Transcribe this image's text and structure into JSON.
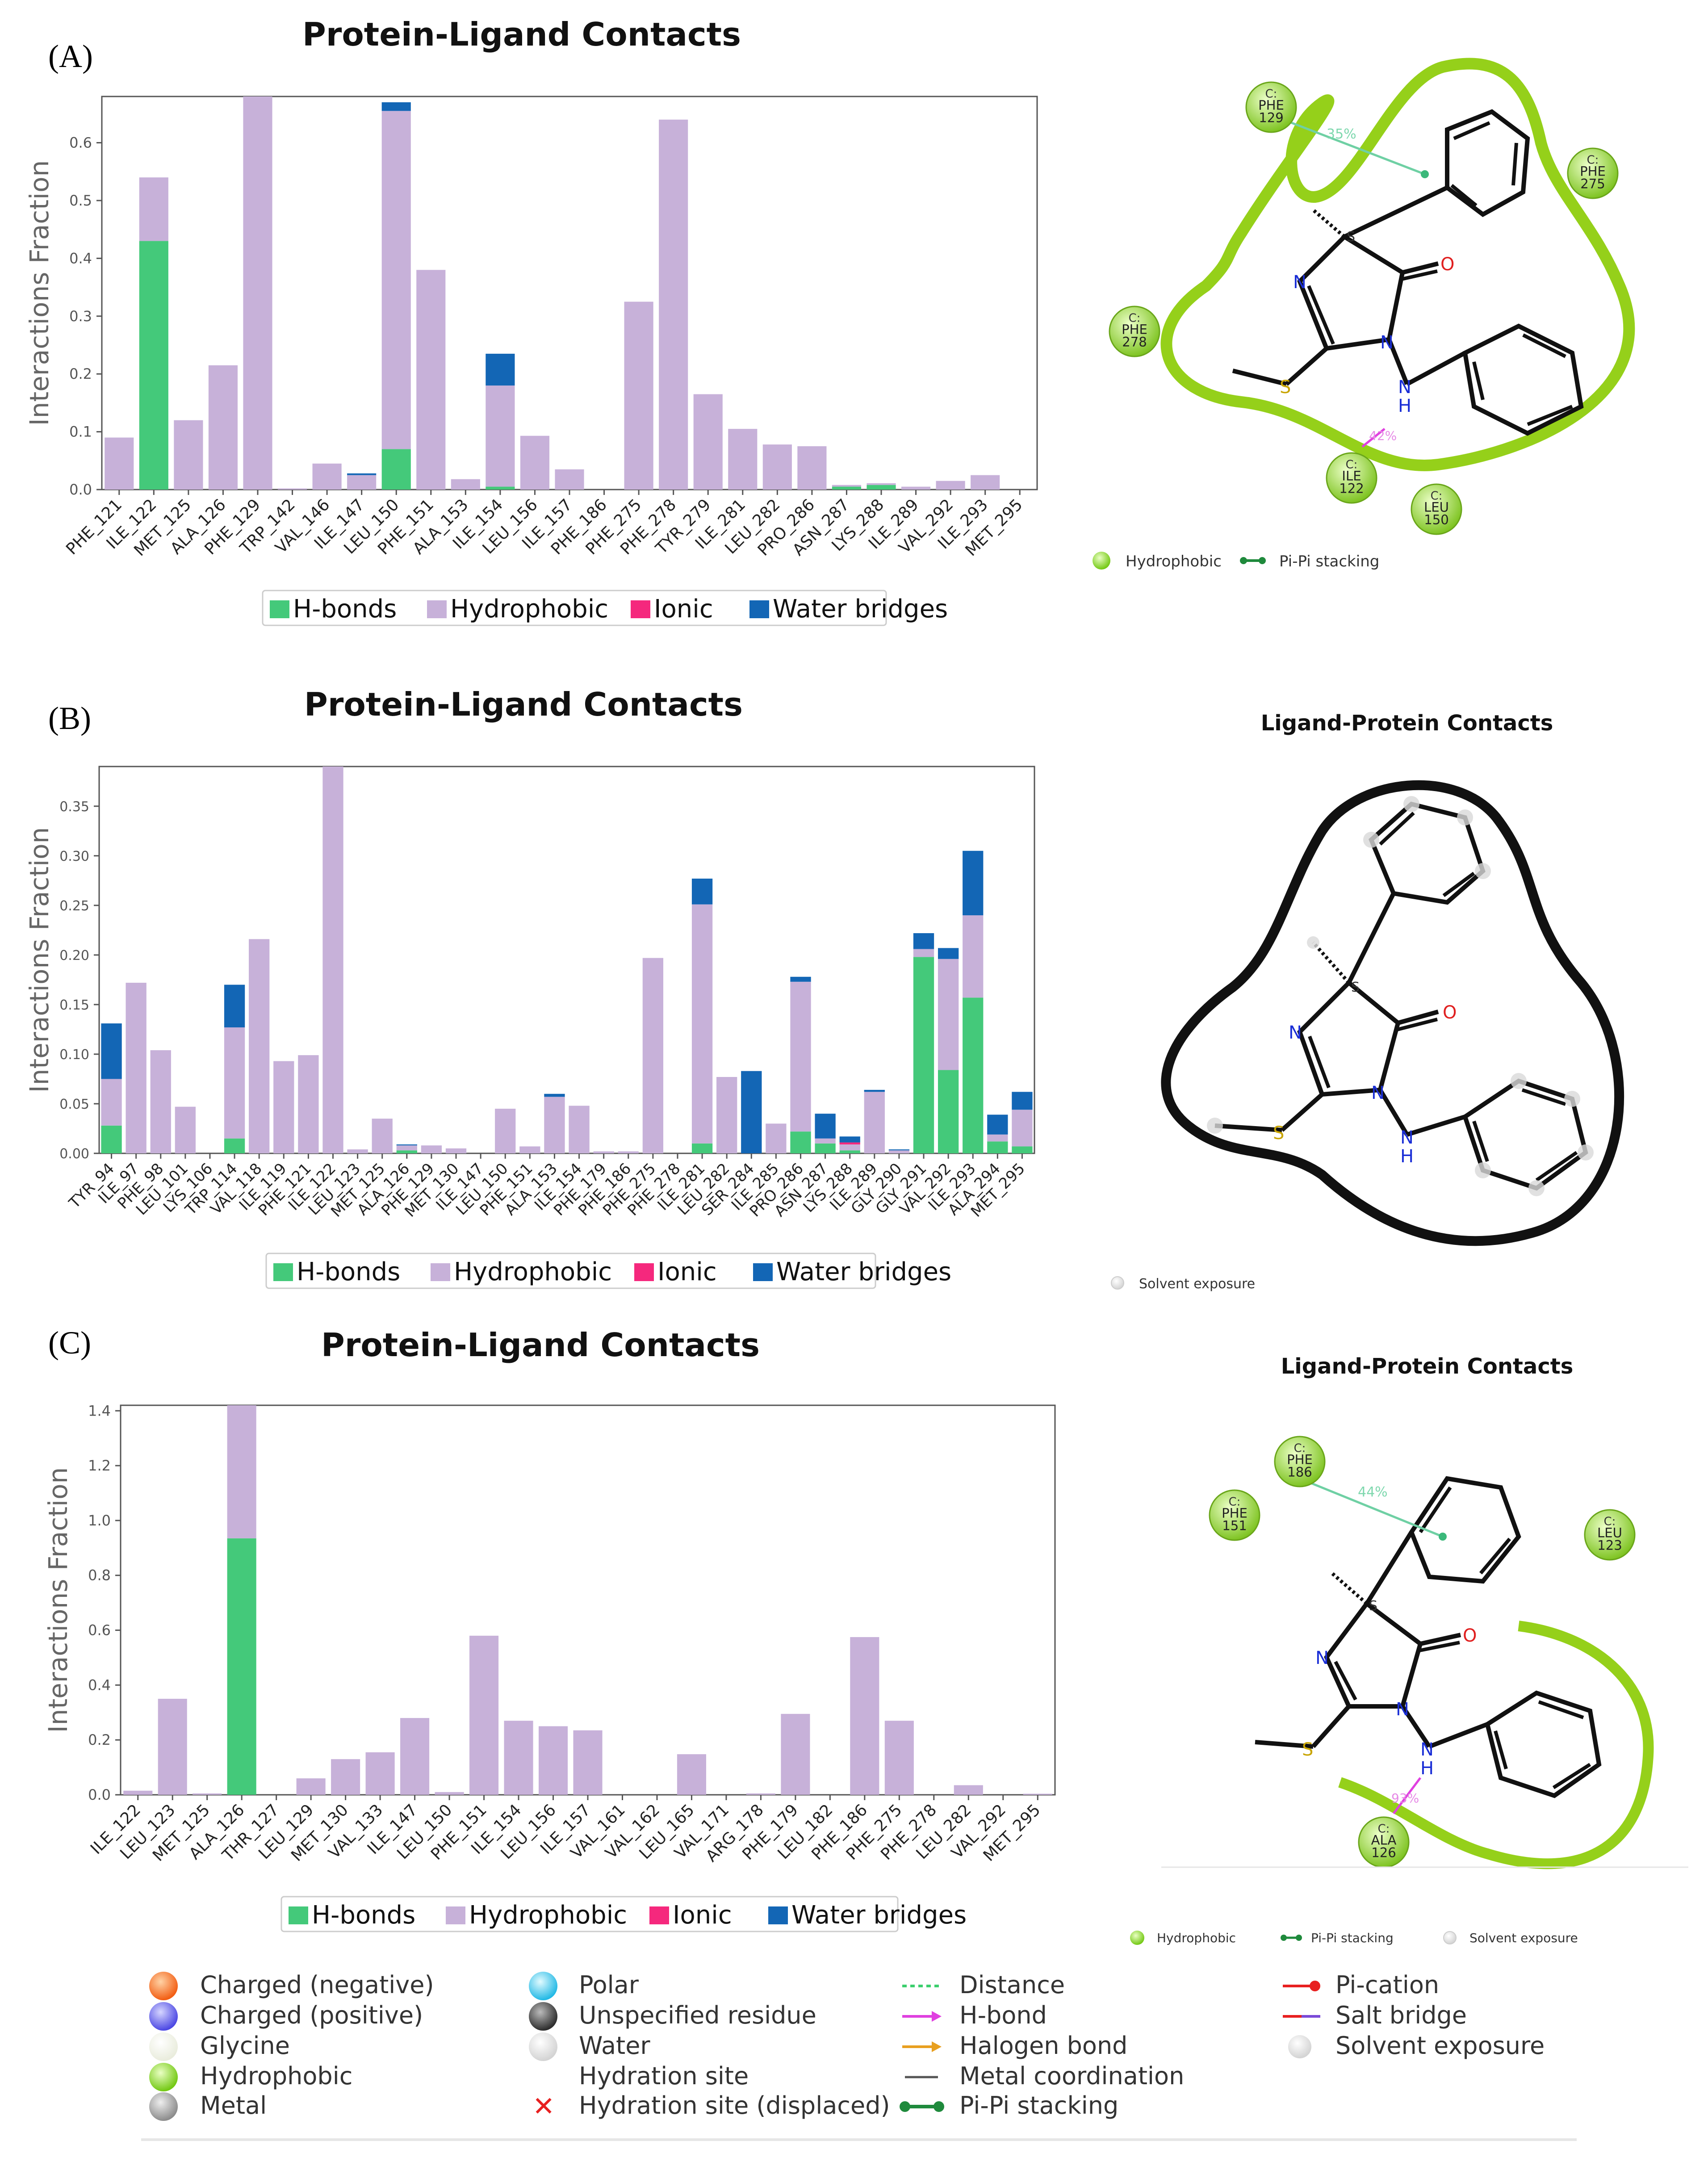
{
  "panel_labels": [
    "(A)",
    "(B)",
    "(C)"
  ],
  "colors": {
    "hbonds": "#44c97a",
    "hydrophobic": "#c7b1d9",
    "ionic": "#f5287d",
    "water": "#1366b5",
    "green_outline": "#95d01a",
    "black_outline": "#111111",
    "residue_fill": "#9bd84a"
  },
  "legend_labels": {
    "hbonds": "H-bonds",
    "hydrophobic": "Hydrophobic",
    "ionic": "Ionic",
    "water": "Water bridges"
  },
  "chart_data": [
    {
      "type": "bar",
      "stacked": true,
      "title": "Protein-Ligand Contacts",
      "ylabel": "Interactions Fraction",
      "ylim": [
        0,
        0.68
      ],
      "yticks": [
        "0.0",
        "0.1",
        "0.2",
        "0.3",
        "0.4",
        "0.5",
        "0.6"
      ],
      "categories": [
        "PHE_121",
        "ILE_122",
        "MET_125",
        "ALA_126",
        "PHE_129",
        "TRP_142",
        "VAL_146",
        "ILE_147",
        "LEU_150",
        "PHE_151",
        "ALA_153",
        "ILE_154",
        "LEU_156",
        "ILE_157",
        "PHE_186",
        "PHE_275",
        "PHE_278",
        "TYR_279",
        "ILE_281",
        "LEU_282",
        "PRO_286",
        "ASN_287",
        "LYS_288",
        "ILE_289",
        "VAL_292",
        "ILE_293",
        "MET_295"
      ],
      "series": [
        {
          "name": "H-bonds",
          "values": [
            0,
            0.43,
            0,
            0,
            0,
            0,
            0,
            0,
            0.07,
            0,
            0,
            0.005,
            0,
            0,
            0,
            0,
            0,
            0,
            0,
            0,
            0,
            0.005,
            0.008,
            0,
            0,
            0,
            0
          ]
        },
        {
          "name": "Hydrophobic",
          "values": [
            0.09,
            0.11,
            0.12,
            0.215,
            0.68,
            0.002,
            0.045,
            0.025,
            0.585,
            0.38,
            0.018,
            0.175,
            0.093,
            0.035,
            0,
            0.325,
            0.64,
            0.165,
            0.105,
            0.078,
            0.075,
            0.003,
            0.003,
            0.005,
            0.015,
            0.025,
            0
          ]
        },
        {
          "name": "Ionic",
          "values": [
            0,
            0,
            0,
            0,
            0,
            0,
            0,
            0,
            0,
            0,
            0,
            0,
            0,
            0,
            0,
            0,
            0,
            0,
            0,
            0,
            0,
            0,
            0,
            0,
            0,
            0,
            0
          ]
        },
        {
          "name": "Water bridges",
          "values": [
            0,
            0,
            0,
            0,
            0,
            0,
            0,
            0.003,
            0.015,
            0,
            0,
            0.055,
            0,
            0,
            0,
            0,
            0,
            0,
            0,
            0,
            0,
            0,
            0,
            0,
            0,
            0,
            0
          ]
        }
      ],
      "legend": "bottom"
    },
    {
      "type": "bar",
      "stacked": true,
      "title": "Protein-Ligand Contacts",
      "ylabel": "Interactions Fraction",
      "ylim": [
        0,
        0.39
      ],
      "yticks": [
        "0.00",
        "0.05",
        "0.10",
        "0.15",
        "0.20",
        "0.25",
        "0.30",
        "0.35"
      ],
      "categories": [
        "TYR_94",
        "ILE_97",
        "PHE_98",
        "LEU_101",
        "LYS_106",
        "TRP_114",
        "VAL_118",
        "ILE_119",
        "PHE_121",
        "ILE_122",
        "LEU_123",
        "MET_125",
        "ALA_126",
        "PHE_129",
        "MET_130",
        "ILE_147",
        "LEU_150",
        "PHE_151",
        "ALA_153",
        "ILE_154",
        "PHE_179",
        "PHE_186",
        "PHE_275",
        "PHE_278",
        "ILE_281",
        "LEU_282",
        "SER_284",
        "ILE_285",
        "PRO_286",
        "ASN_287",
        "LYS_288",
        "ILE_289",
        "GLY_290",
        "GLY_291",
        "VAL_292",
        "ILE_293",
        "ALA_294",
        "MET_295"
      ],
      "series": [
        {
          "name": "H-bonds",
          "values": [
            0.028,
            0,
            0,
            0,
            0,
            0.015,
            0,
            0,
            0,
            0,
            0,
            0,
            0.003,
            0,
            0,
            0,
            0,
            0,
            0,
            0,
            0,
            0,
            0,
            0,
            0.01,
            0,
            0,
            0,
            0.022,
            0.01,
            0.003,
            0,
            0,
            0.198,
            0.084,
            0.157,
            0.012,
            0.007
          ]
        },
        {
          "name": "Hydrophobic",
          "values": [
            0.047,
            0.172,
            0.104,
            0.047,
            0,
            0.112,
            0.216,
            0.093,
            0.099,
            0.39,
            0.004,
            0.035,
            0.005,
            0.008,
            0.005,
            0,
            0.045,
            0.007,
            0.057,
            0.048,
            0.002,
            0.002,
            0.197,
            0,
            0.241,
            0.077,
            0,
            0.03,
            0.151,
            0.005,
            0.006,
            0.062,
            0.003,
            0.008,
            0.112,
            0.083,
            0.007,
            0.037
          ]
        },
        {
          "name": "Ionic",
          "values": [
            0,
            0,
            0,
            0,
            0,
            0,
            0,
            0,
            0,
            0,
            0,
            0,
            0,
            0,
            0,
            0,
            0,
            0,
            0,
            0,
            0,
            0,
            0,
            0,
            0,
            0,
            0,
            0,
            0,
            0,
            0.002,
            0,
            0,
            0,
            0,
            0,
            0,
            0
          ]
        },
        {
          "name": "Water bridges",
          "values": [
            0.056,
            0,
            0,
            0,
            0,
            0.043,
            0,
            0,
            0,
            0,
            0,
            0,
            0.001,
            0,
            0,
            0,
            0,
            0,
            0.003,
            0,
            0,
            0,
            0,
            0,
            0.026,
            0,
            0.083,
            0,
            0.005,
            0.025,
            0.006,
            0.002,
            0.001,
            0.016,
            0.011,
            0.065,
            0.02,
            0.018
          ]
        }
      ],
      "legend": "bottom"
    },
    {
      "type": "bar",
      "stacked": true,
      "title": "Protein-Ligand Contacts",
      "ylabel": "Interactions Fraction",
      "ylim": [
        0,
        1.42
      ],
      "yticks": [
        "0.0",
        "0.2",
        "0.4",
        "0.6",
        "0.8",
        "1.0",
        "1.2",
        "1.4"
      ],
      "categories": [
        "ILE_122",
        "LEU_123",
        "MET_125",
        "ALA_126",
        "THR_127",
        "LEU_129",
        "MET_130",
        "VAL_133",
        "ILE_147",
        "LEU_150",
        "PHE_151",
        "ILE_154",
        "LEU_156",
        "ILE_157",
        "VAL_161",
        "VAL_162",
        "LEU_165",
        "VAL_171",
        "ARG_178",
        "PHE_179",
        "LEU_182",
        "PHE_186",
        "PHE_275",
        "PHE_278",
        "LEU_282",
        "VAL_292",
        "MET_295"
      ],
      "series": [
        {
          "name": "H-bonds",
          "values": [
            0,
            0,
            0,
            0.935,
            0,
            0,
            0,
            0,
            0,
            0,
            0,
            0,
            0,
            0,
            0,
            0,
            0,
            0,
            0,
            0,
            0,
            0,
            0,
            0,
            0,
            0,
            0
          ]
        },
        {
          "name": "Hydrophobic",
          "values": [
            0.015,
            0.35,
            0.005,
            0.485,
            0,
            0.06,
            0.13,
            0.155,
            0.28,
            0.01,
            0.58,
            0.27,
            0.25,
            0.235,
            0,
            0,
            0.148,
            0,
            0.005,
            0.295,
            0,
            0.575,
            0.27,
            0,
            0.035,
            0,
            0.004
          ]
        },
        {
          "name": "Ionic",
          "values": [
            0,
            0,
            0,
            0,
            0,
            0,
            0,
            0,
            0,
            0,
            0,
            0,
            0,
            0,
            0,
            0,
            0,
            0,
            0,
            0,
            0,
            0,
            0,
            0,
            0,
            0,
            0
          ]
        },
        {
          "name": "Water bridges",
          "values": [
            0,
            0,
            0,
            0,
            0,
            0,
            0,
            0,
            0,
            0,
            0,
            0,
            0,
            0,
            0,
            0,
            0,
            0,
            0,
            0,
            0,
            0,
            0,
            0,
            0,
            0,
            0
          ]
        }
      ],
      "legend": "bottom"
    }
  ],
  "diagrams": {
    "a": {
      "residues": [
        {
          "c": "C:",
          "name": "PHE",
          "num": "129"
        },
        {
          "c": "C:",
          "name": "PHE",
          "num": "275"
        },
        {
          "c": "C:",
          "name": "PHE",
          "num": "278"
        },
        {
          "c": "C:",
          "name": "ILE",
          "num": "122"
        },
        {
          "c": "C:",
          "name": "LEU",
          "num": "150"
        }
      ],
      "pct_pi": "35%",
      "pct_hb": "42%",
      "legend": [
        "Hydrophobic",
        "Pi-Pi stacking"
      ]
    },
    "b": {
      "title": "Ligand-Protein Contacts",
      "legend": [
        "Solvent exposure"
      ]
    },
    "c": {
      "title": "Ligand-Protein Contacts",
      "residues": [
        {
          "c": "C:",
          "name": "PHE",
          "num": "186"
        },
        {
          "c": "C:",
          "name": "PHE",
          "num": "151"
        },
        {
          "c": "C:",
          "name": "LEU",
          "num": "123"
        },
        {
          "c": "C:",
          "name": "ALA",
          "num": "126"
        }
      ],
      "pct_pi": "44%",
      "pct_hb": "93%",
      "legend": [
        "Hydrophobic",
        "Pi-Pi stacking",
        "Solvent exposure"
      ]
    }
  },
  "atoms": {
    "N": "N",
    "NH": "N",
    "H": "H",
    "O": "O",
    "S": "S",
    "stereo": "S"
  },
  "key_legend": {
    "col1": [
      "Charged (negative)",
      "Charged (positive)",
      "Glycine",
      "Hydrophobic",
      "Metal"
    ],
    "col2": [
      "Polar",
      "Unspecified residue",
      "Water",
      "Hydration site",
      "Hydration site (displaced)"
    ],
    "col3": [
      "Distance",
      "H-bond",
      "Halogen bond",
      "Metal coordination",
      "Pi-Pi stacking"
    ],
    "col4": [
      "Pi-cation",
      "Salt bridge",
      "Solvent exposure"
    ]
  }
}
